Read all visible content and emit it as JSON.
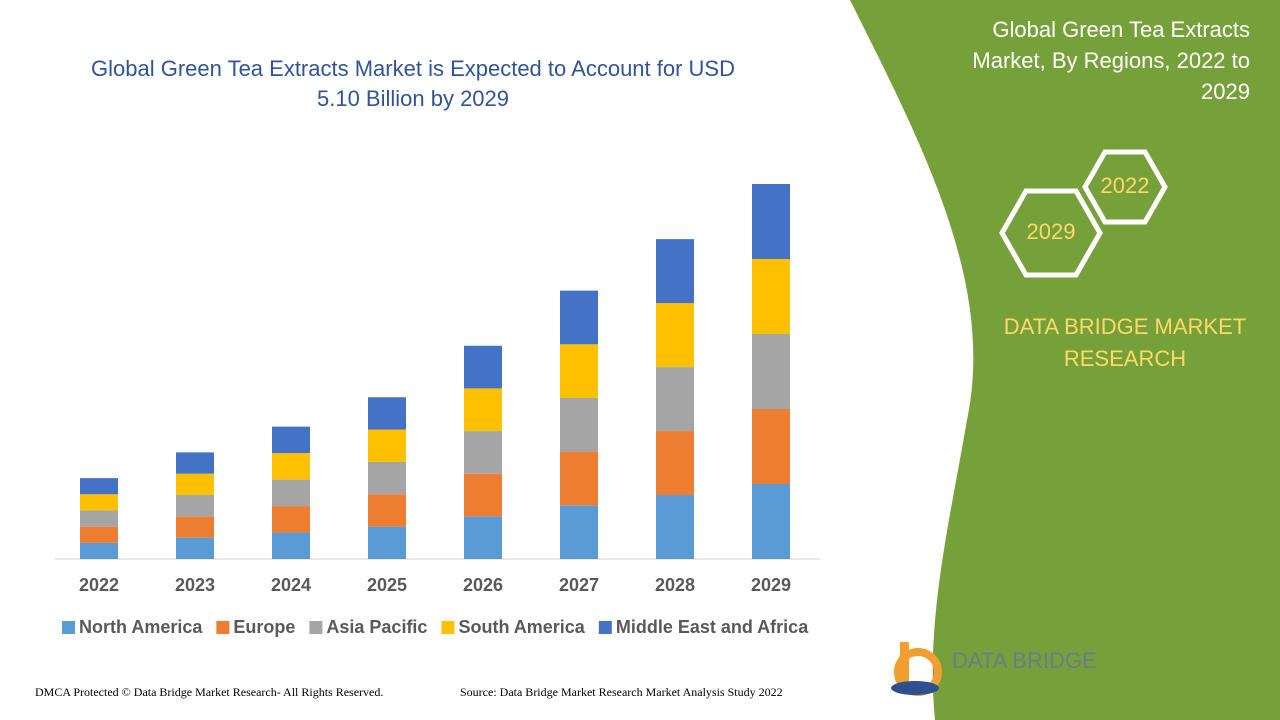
{
  "chart_data": {
    "type": "stacked_bar",
    "title": "Global Green Tea Extracts Market is Expected to Account for USD 5.10 Billion by 2029",
    "categories": [
      "2022",
      "2023",
      "2024",
      "2025",
      "2026",
      "2027",
      "2028",
      "2029"
    ],
    "series": [
      {
        "name": "North America",
        "color": "#5b9bd5",
        "values": [
          0.22,
          0.29,
          0.36,
          0.44,
          0.58,
          0.73,
          0.87,
          1.02
        ]
      },
      {
        "name": "Europe",
        "color": "#ed7d31",
        "values": [
          0.22,
          0.29,
          0.36,
          0.44,
          0.58,
          0.73,
          0.87,
          1.02
        ]
      },
      {
        "name": "Asia Pacific",
        "color": "#a5a5a5",
        "values": [
          0.22,
          0.29,
          0.36,
          0.44,
          0.58,
          0.73,
          0.87,
          1.02
        ]
      },
      {
        "name": "South America",
        "color": "#ffc000",
        "values": [
          0.22,
          0.29,
          0.36,
          0.44,
          0.58,
          0.73,
          0.87,
          1.02
        ]
      },
      {
        "name": "Middle East and Africa",
        "color": "#4472c4",
        "values": [
          0.22,
          0.29,
          0.36,
          0.44,
          0.58,
          0.73,
          0.87,
          1.02
        ]
      }
    ],
    "ylim": [
      0,
      5.1
    ],
    "legend": "bottom"
  },
  "panel": {
    "title": "Global Green Tea Extracts Market, By Regions, 2022 to 2029",
    "hex_back": "2022",
    "hex_front": "2029",
    "brand": "DATA BRIDGE MARKET RESEARCH",
    "logo_text": "DATA BRIDGE"
  },
  "footer": {
    "rights": "DMCA Protected © Data Bridge Market Research- All Rights Reserved.",
    "source": "Source: Data Bridge Market Research Market Analysis Study 2022"
  }
}
